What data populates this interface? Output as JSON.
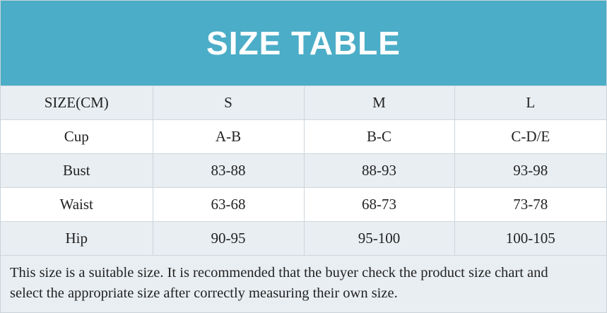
{
  "header": {
    "title": "SIZE TABLE"
  },
  "table": {
    "columns": [
      "SIZE(CM)",
      "S",
      "M",
      "L"
    ],
    "rows": [
      [
        "Cup",
        "A-B",
        "B-C",
        "C-D/E"
      ],
      [
        "Bust",
        "83-88",
        "88-93",
        "93-98"
      ],
      [
        "Waist",
        "63-68",
        "68-73",
        "73-78"
      ],
      [
        "Hip",
        "90-95",
        "95-100",
        "100-105"
      ]
    ]
  },
  "note": "This size is a suitable size. It is recommended that the buyer check the product size chart and select the appropriate size after correctly measuring their own size."
}
